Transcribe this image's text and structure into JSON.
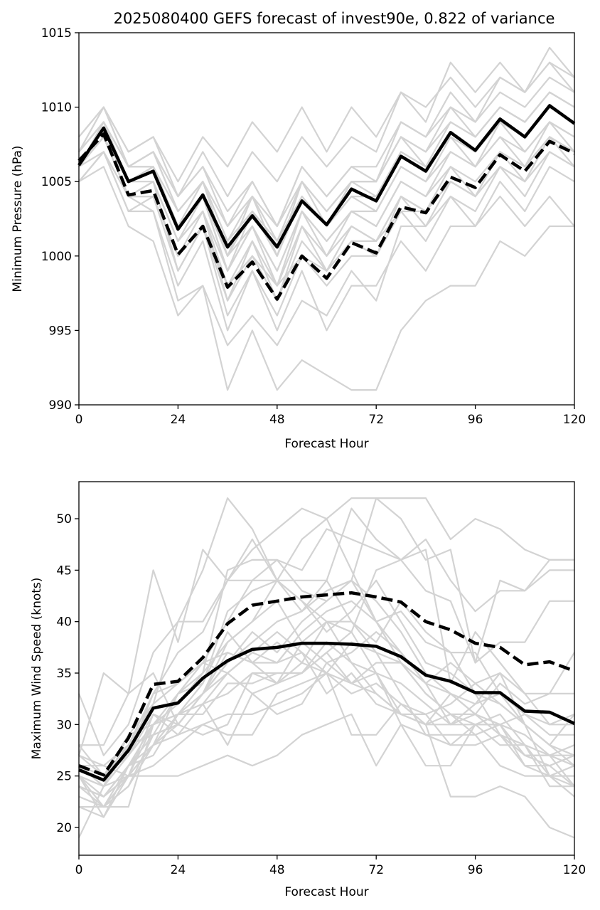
{
  "figure_title": "2025080400 GEFS forecast of invest90e, 0.822 of variance",
  "chart_data": [
    {
      "type": "line",
      "title": "2025080400 GEFS forecast of invest90e, 0.822 of variance",
      "xlabel": "Forecast Hour",
      "ylabel": "Minimum Pressure (hPa)",
      "xlim": [
        0,
        120
      ],
      "ylim": [
        990,
        1015
      ],
      "xticks": [
        0,
        24,
        48,
        72,
        96,
        120
      ],
      "yticks": [
        990,
        995,
        1000,
        1005,
        1010,
        1015
      ],
      "grid": false,
      "x": [
        0,
        6,
        12,
        18,
        24,
        30,
        36,
        42,
        48,
        54,
        60,
        66,
        72,
        78,
        84,
        90,
        96,
        102,
        108,
        114,
        120
      ],
      "members": [
        [
          1006,
          1008,
          1005,
          1006,
          1002,
          1004,
          1000,
          1003,
          1000,
          1004,
          1002,
          1004,
          1004,
          1007,
          1006,
          1008,
          1007,
          1009,
          1008,
          1010,
          1009
        ],
        [
          1007,
          1009,
          1006,
          1007,
          1003,
          1005,
          1001,
          1004,
          1001,
          1005,
          1003,
          1005,
          1005,
          1008,
          1007,
          1009,
          1008,
          1010,
          1009,
          1011,
          1010
        ],
        [
          1006,
          1008,
          1004,
          1005,
          1001,
          1003,
          999,
          1002,
          999,
          1003,
          1001,
          1003,
          1003,
          1006,
          1005,
          1007,
          1006,
          1008,
          1007,
          1009,
          1008
        ],
        [
          1005,
          1007,
          1003,
          1004,
          999,
          1002,
          997,
          1000,
          997,
          1001,
          999,
          1001,
          1000,
          1004,
          1003,
          1006,
          1005,
          1007,
          1006,
          1008,
          1007
        ],
        [
          1006,
          1008,
          1004,
          1004,
          1000,
          1002,
          998,
          1000,
          998,
          1000,
          999,
          1001,
          1001,
          1003,
          1003,
          1005,
          1004,
          1007,
          1006,
          1008,
          1007
        ],
        [
          1008,
          1010,
          1007,
          1008,
          1004,
          1006,
          1002,
          1005,
          1002,
          1006,
          1004,
          1006,
          1006,
          1009,
          1008,
          1010,
          1009,
          1011,
          1010,
          1012,
          1011
        ],
        [
          1007,
          1010,
          1006,
          1007,
          1003,
          1005,
          1000,
          1004,
          1000,
          1005,
          1002,
          1005,
          1005,
          1008,
          1007,
          1010,
          1008,
          1010,
          1009,
          1011,
          1010
        ],
        [
          1008,
          1010,
          1007,
          1008,
          1005,
          1008,
          1006,
          1009,
          1007,
          1010,
          1007,
          1010,
          1008,
          1011,
          1009,
          1013,
          1011,
          1013,
          1011,
          1014,
          1012
        ],
        [
          1007,
          1009,
          1006,
          1007,
          1004,
          1007,
          1004,
          1007,
          1005,
          1008,
          1006,
          1008,
          1007,
          1011,
          1010,
          1012,
          1010,
          1012,
          1011,
          1013,
          1012
        ],
        [
          1006,
          1009,
          1005,
          1006,
          1002,
          1004,
          999,
          1003,
          1000,
          1004,
          1002,
          1005,
          1005,
          1009,
          1008,
          1011,
          1009,
          1012,
          1011,
          1013,
          1011
        ],
        [
          1005,
          1007,
          1003,
          1003,
          997,
          998,
          994,
          996,
          994,
          997,
          996,
          999,
          997,
          1002,
          1002,
          1004,
          1003,
          1006,
          1005,
          1008,
          1007
        ],
        [
          1005,
          1006,
          1002,
          1001,
          996,
          998,
          991,
          995,
          991,
          993,
          992,
          991,
          991,
          995,
          997,
          998,
          998,
          1001,
          1000,
          1002,
          1002
        ],
        [
          1006,
          1007,
          1004,
          1003,
          998,
          1001,
          995,
          999,
          995,
          999,
          995,
          998,
          998,
          1001,
          999,
          1002,
          1002,
          1004,
          1002,
          1004,
          1002
        ],
        [
          1006,
          1008,
          1004,
          1005,
          999,
          1002,
          996,
          999,
          996,
          1000,
          998,
          1000,
          1000,
          1003,
          1001,
          1004,
          1002,
          1005,
          1003,
          1006,
          1005
        ],
        [
          1006,
          1008,
          1005,
          1005,
          1001,
          1003,
          998,
          1001,
          998,
          1002,
          1000,
          1002,
          1001,
          1004,
          1002,
          1005,
          1004,
          1006,
          1004,
          1007,
          1006
        ],
        [
          1006,
          1009,
          1005,
          1006,
          1002,
          1004,
          1000,
          1002,
          999,
          1003,
          1001,
          1003,
          1002,
          1005,
          1004,
          1007,
          1006,
          1008,
          1006,
          1009,
          1007
        ],
        [
          1007,
          1009,
          1006,
          1006,
          1002,
          1005,
          1001,
          1003,
          1001,
          1004,
          1002,
          1004,
          1003,
          1006,
          1005,
          1008,
          1006,
          1009,
          1007,
          1009,
          1008
        ],
        [
          1007,
          1010,
          1006,
          1007,
          1004,
          1006,
          1003,
          1005,
          1002,
          1006,
          1004,
          1006,
          1005,
          1008,
          1006,
          1009,
          1008,
          1010,
          1009,
          1011,
          1010
        ],
        [
          1006,
          1008,
          1004,
          1005,
          1001,
          1004,
          999,
          1002,
          998,
          1003,
          1000,
          1003,
          1002,
          1005,
          1004,
          1006,
          1004,
          1007,
          1005,
          1008,
          1006
        ],
        [
          1005,
          1007,
          1004,
          1004,
          1000,
          1003,
          997,
          1001,
          997,
          1002,
          999,
          1002,
          1001,
          1004,
          1003,
          1005,
          1004,
          1006,
          1005,
          1007,
          1006
        ],
        [
          1007,
          1009,
          1006,
          1006,
          1003,
          1005,
          1002,
          1004,
          1002,
          1005,
          1003,
          1005,
          1004,
          1007,
          1006,
          1008,
          1007,
          1009,
          1008,
          1010,
          1009
        ]
      ],
      "solid_line": [
        1006.1,
        1008.6,
        1005.0,
        1005.7,
        1001.8,
        1004.1,
        1000.6,
        1002.7,
        1000.6,
        1003.7,
        1002.1,
        1004.5,
        1003.7,
        1006.7,
        1005.7,
        1008.3,
        1007.1,
        1009.2,
        1008.0,
        1010.1,
        1008.9
      ],
      "dashed_line": [
        1006.4,
        1008.2,
        1004.1,
        1004.4,
        1000.1,
        1002.0,
        997.9,
        999.6,
        997.1,
        1000.0,
        998.5,
        1000.9,
        1000.2,
        1003.3,
        1002.9,
        1005.3,
        1004.6,
        1006.8,
        1005.7,
        1007.7,
        1006.9
      ]
    },
    {
      "type": "line",
      "title": "",
      "xlabel": "Forecast Hour",
      "ylabel": "Maximum Wind Speed (knots)",
      "xlim": [
        0,
        120
      ],
      "ylim": [
        17.3,
        53.6
      ],
      "xticks": [
        0,
        24,
        48,
        72,
        96,
        120
      ],
      "yticks": [
        20,
        25,
        30,
        35,
        40,
        45,
        50
      ],
      "grid": false,
      "x": [
        0,
        6,
        12,
        18,
        24,
        30,
        36,
        42,
        48,
        54,
        60,
        66,
        72,
        78,
        84,
        90,
        96,
        102,
        108,
        114,
        120
      ],
      "members": [
        [
          33,
          27,
          30,
          37,
          40,
          45,
          52,
          49,
          44,
          42,
          40,
          36,
          33,
          31,
          30,
          30,
          32,
          33,
          30,
          28,
          26
        ],
        [
          27,
          35,
          33,
          45,
          38,
          47,
          44,
          47,
          49,
          51,
          50,
          45,
          40,
          36,
          33,
          31,
          31,
          29,
          27,
          26,
          24
        ],
        [
          26,
          24,
          29,
          32,
          40,
          40,
          44,
          48,
          44,
          41,
          44,
          51,
          48,
          46,
          48,
          44,
          41,
          43,
          43,
          46,
          46
        ],
        [
          23,
          22,
          25,
          28,
          33,
          36,
          40,
          44,
          46,
          43,
          42,
          44,
          52,
          52,
          52,
          48,
          50,
          49,
          47,
          46,
          46
        ],
        [
          28,
          28,
          33,
          35,
          30,
          33,
          38,
          40,
          44,
          48,
          50,
          52,
          52,
          50,
          46,
          47,
          36,
          44,
          43,
          45,
          45
        ],
        [
          25,
          21,
          26,
          30,
          32,
          35,
          45,
          46,
          46,
          45,
          49,
          48,
          47,
          46,
          43,
          42,
          36,
          38,
          38,
          42,
          42
        ],
        [
          24,
          23,
          25,
          28,
          30,
          33,
          36,
          38,
          40,
          41,
          43,
          44,
          40,
          41,
          38,
          37,
          37,
          33,
          31,
          30,
          30
        ],
        [
          22,
          22,
          24,
          29,
          33,
          35,
          38,
          40,
          42,
          38,
          36,
          37,
          39,
          37,
          34,
          33,
          31,
          29,
          27,
          27,
          27
        ],
        [
          28,
          25,
          29,
          30,
          31,
          34,
          41,
          43,
          44,
          44,
          44,
          40,
          38,
          42,
          39,
          37,
          33,
          29,
          28,
          25,
          24
        ],
        [
          25,
          24,
          27,
          31,
          29,
          32,
          35,
          37,
          36,
          39,
          41,
          42,
          40,
          37,
          34,
          30,
          30,
          31,
          28,
          24,
          24
        ],
        [
          24,
          22,
          26,
          27,
          31,
          32,
          33,
          35,
          34,
          36,
          40,
          39,
          45,
          46,
          47,
          34,
          39,
          36,
          33,
          33,
          37
        ],
        [
          22,
          21,
          25,
          31,
          30,
          29,
          30,
          35,
          35,
          35,
          37,
          34,
          33,
          31,
          30,
          33,
          31,
          30,
          31,
          29,
          29
        ],
        [
          23,
          22,
          24,
          28,
          29,
          30,
          31,
          31,
          32,
          33,
          35,
          34,
          36,
          36,
          33,
          31,
          30,
          30,
          27,
          27,
          26
        ],
        [
          26,
          26,
          28,
          29,
          30,
          33,
          36,
          39,
          37,
          40,
          42,
          44,
          42,
          39,
          35,
          33,
          32,
          35,
          33,
          30,
          31
        ],
        [
          19,
          24,
          28,
          32,
          34,
          36,
          37,
          36,
          34,
          38,
          40,
          40,
          37,
          33,
          29,
          28,
          30,
          28,
          28,
          27,
          28
        ],
        [
          25,
          24,
          27,
          33,
          34,
          36,
          35,
          33,
          34,
          35,
          38,
          36,
          35,
          34,
          32,
          30,
          31,
          34,
          32,
          33,
          33
        ],
        [
          26,
          25,
          27,
          30,
          31,
          33,
          35,
          37,
          39,
          37,
          33,
          35,
          32,
          31,
          30,
          31,
          29,
          26,
          25,
          25,
          25
        ],
        [
          24,
          23,
          26,
          28,
          31,
          31,
          34,
          34,
          35,
          35,
          37,
          39,
          35,
          31,
          31,
          32,
          34,
          35,
          30,
          25,
          23
        ],
        [
          27,
          25,
          28,
          33,
          37,
          39,
          44,
          44,
          44,
          42,
          39,
          41,
          44,
          40,
          36,
          35,
          33,
          32,
          30,
          28,
          27
        ],
        [
          25,
          23,
          26,
          29,
          30,
          33,
          37,
          36,
          38,
          36,
          35,
          33,
          34,
          32,
          31,
          28,
          28,
          29,
          26,
          25,
          26
        ],
        [
          26,
          24,
          25,
          25,
          25,
          26,
          27,
          26,
          27,
          29,
          30,
          31,
          26,
          30,
          26,
          26,
          30,
          30,
          29,
          27,
          24
        ],
        [
          27,
          26,
          25,
          26,
          28,
          30,
          29,
          29,
          33,
          34,
          35,
          29,
          29,
          32,
          30,
          23,
          23,
          24,
          23,
          20,
          19
        ],
        [
          25,
          22,
          22,
          30,
          31,
          32,
          28,
          33,
          31,
          32,
          36,
          34,
          35,
          30,
          29,
          29,
          29,
          30,
          26,
          26,
          27
        ],
        [
          24,
          23,
          25,
          30,
          33,
          34,
          39,
          36,
          36,
          37,
          35,
          38,
          37,
          36,
          34,
          36,
          34,
          32,
          30,
          28,
          31
        ]
      ],
      "solid_line": [
        25.6,
        24.6,
        27.5,
        31.6,
        32.1,
        34.5,
        36.2,
        37.3,
        37.5,
        37.9,
        37.9,
        37.8,
        37.6,
        36.6,
        34.8,
        34.2,
        33.1,
        33.1,
        31.3,
        31.2,
        30.1
      ],
      "dashed_line": [
        26.0,
        25.1,
        28.7,
        33.9,
        34.2,
        36.5,
        39.8,
        41.6,
        42.0,
        42.4,
        42.6,
        42.8,
        42.4,
        41.9,
        40.0,
        39.2,
        37.9,
        37.5,
        35.8,
        36.1,
        35.2
      ]
    }
  ]
}
